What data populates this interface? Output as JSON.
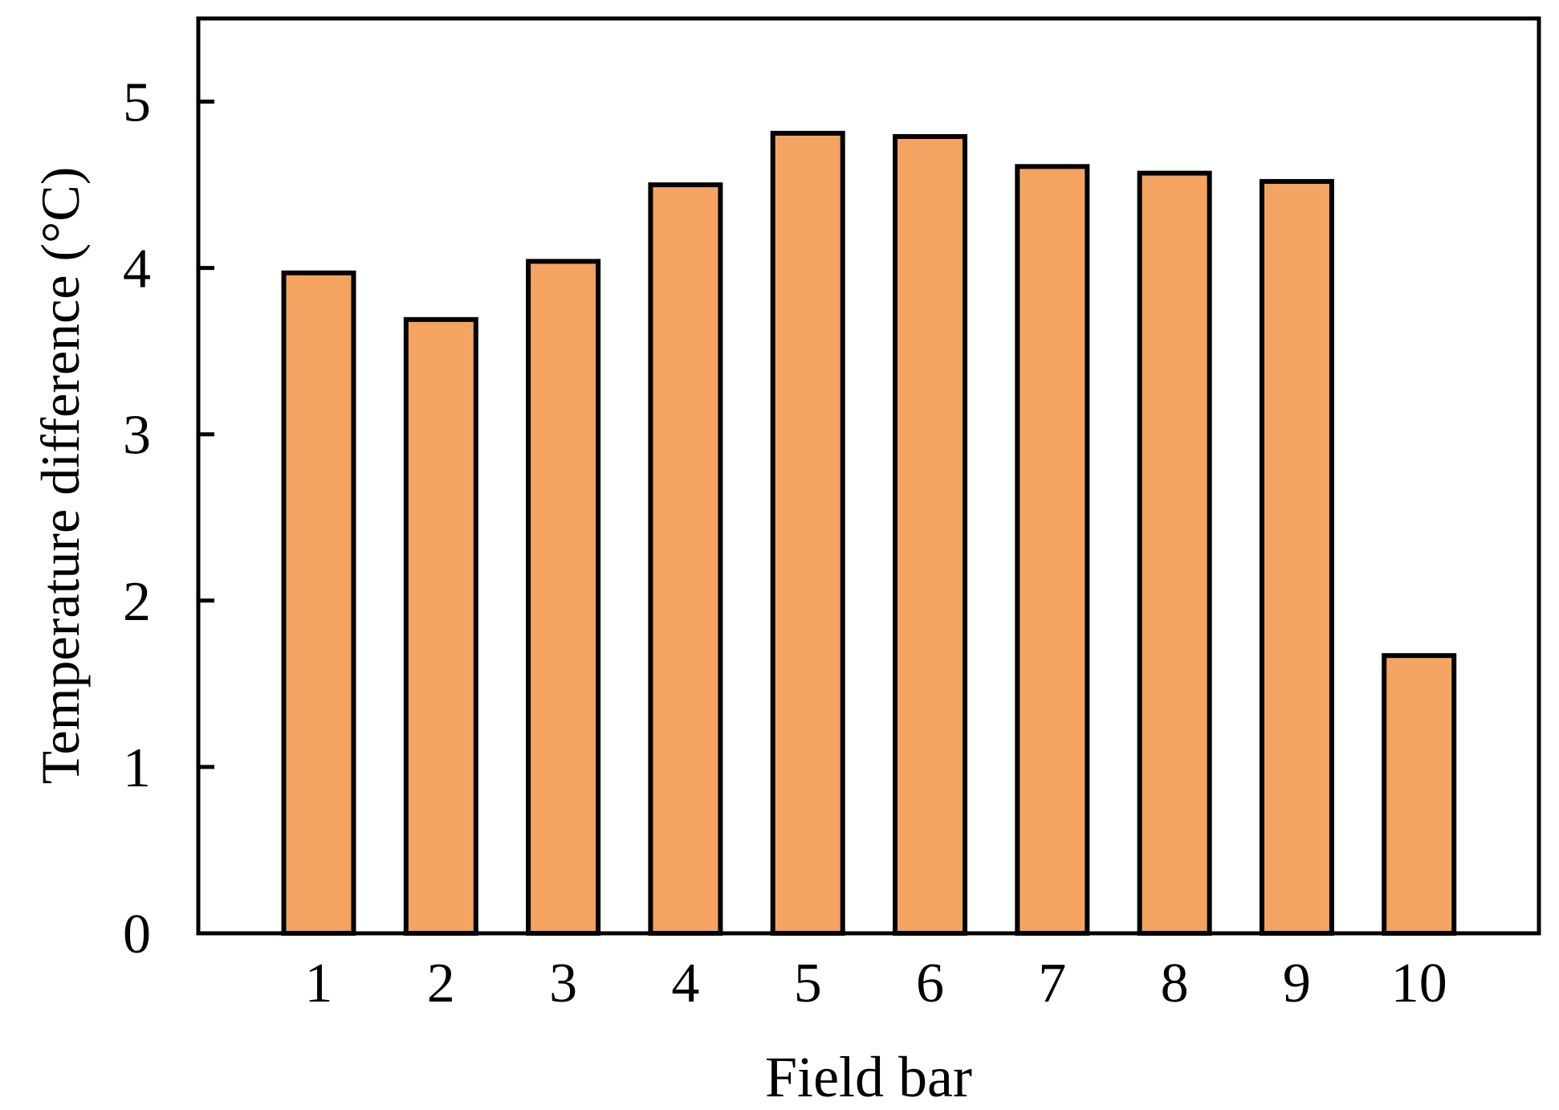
{
  "chart_data": {
    "type": "bar",
    "categories": [
      "1",
      "2",
      "3",
      "4",
      "5",
      "6",
      "7",
      "8",
      "9",
      "10"
    ],
    "values": [
      3.97,
      3.69,
      4.04,
      4.5,
      4.81,
      4.79,
      4.61,
      4.57,
      4.52,
      1.67
    ],
    "title": "",
    "xlabel": "Field bar",
    "ylabel": "Temperature difference (°C)",
    "ylim": [
      0,
      5.5
    ],
    "yticks": [
      "0",
      "1",
      "2",
      "3",
      "4",
      "5"
    ],
    "grid": false,
    "legend": "none",
    "bar_color": "#F4A460",
    "edge_color": "#000000"
  }
}
